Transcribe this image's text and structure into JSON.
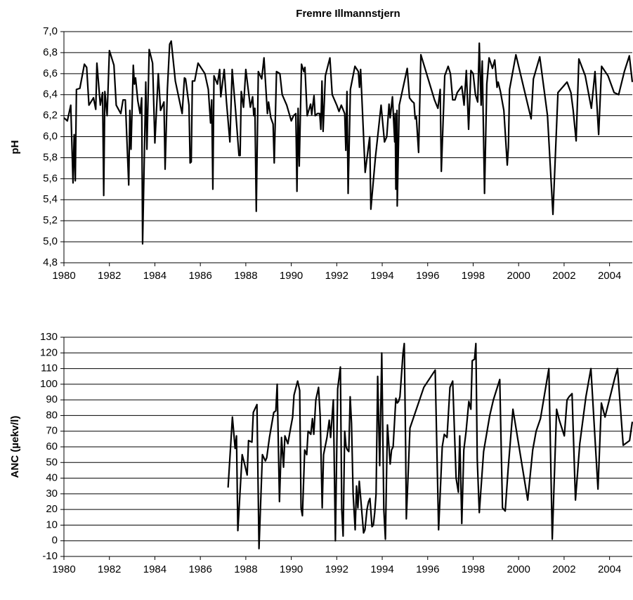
{
  "chart_data": [
    {
      "type": "line",
      "title": "Fremre Illmannstjern",
      "y_label": "pH",
      "color": "#000000",
      "grid": true,
      "xlim": [
        1980,
        2005
      ],
      "xticks": [
        1980,
        1982,
        1984,
        1986,
        1988,
        1990,
        1992,
        1994,
        1996,
        1998,
        2000,
        2002,
        2004
      ],
      "ylim": [
        4.8,
        7.0
      ],
      "yticks": [
        {
          "value": 4.8,
          "label": "4,8"
        },
        {
          "value": 5.0,
          "label": "5,0"
        },
        {
          "value": 5.2,
          "label": "5,2"
        },
        {
          "value": 5.4,
          "label": "5,4"
        },
        {
          "value": 5.6,
          "label": "5,6"
        },
        {
          "value": 5.8,
          "label": "5,8"
        },
        {
          "value": 6.0,
          "label": "6,0"
        },
        {
          "value": 6.2,
          "label": "6,2"
        },
        {
          "value": 6.4,
          "label": "6,4"
        },
        {
          "value": 6.6,
          "label": "6,6"
        },
        {
          "value": 6.8,
          "label": "6,8"
        },
        {
          "value": 7.0,
          "label": "7,0"
        }
      ],
      "x": [
        1980.0,
        1980.15,
        1980.3,
        1980.4,
        1980.45,
        1980.5,
        1980.55,
        1980.7,
        1980.9,
        1981.0,
        1981.1,
        1981.3,
        1981.4,
        1981.45,
        1981.6,
        1981.7,
        1981.75,
        1981.8,
        1981.9,
        1982.0,
        1982.2,
        1982.3,
        1982.5,
        1982.6,
        1982.7,
        1982.85,
        1982.9,
        1982.95,
        1983.05,
        1983.1,
        1983.15,
        1983.25,
        1983.35,
        1983.42,
        1983.46,
        1983.6,
        1983.65,
        1983.75,
        1983.9,
        1984.0,
        1984.15,
        1984.25,
        1984.4,
        1984.45,
        1984.55,
        1984.65,
        1984.72,
        1984.9,
        1985.2,
        1985.3,
        1985.35,
        1985.5,
        1985.55,
        1985.6,
        1985.65,
        1985.75,
        1985.9,
        1986.2,
        1986.35,
        1986.45,
        1986.5,
        1986.55,
        1986.6,
        1986.75,
        1986.85,
        1986.9,
        1987.05,
        1987.15,
        1987.3,
        1987.4,
        1987.55,
        1987.7,
        1987.75,
        1987.8,
        1987.9,
        1988.0,
        1988.2,
        1988.3,
        1988.35,
        1988.4,
        1988.46,
        1988.55,
        1988.7,
        1988.8,
        1988.95,
        1989.0,
        1989.1,
        1989.2,
        1989.25,
        1989.35,
        1989.5,
        1989.6,
        1989.8,
        1990.0,
        1990.1,
        1990.2,
        1990.25,
        1990.3,
        1990.35,
        1990.45,
        1990.55,
        1990.6,
        1990.7,
        1990.85,
        1990.9,
        1991.0,
        1991.05,
        1991.15,
        1991.25,
        1991.3,
        1991.35,
        1991.4,
        1991.5,
        1991.7,
        1991.8,
        1992.0,
        1992.1,
        1992.2,
        1992.35,
        1992.4,
        1992.45,
        1992.5,
        1992.6,
        1992.8,
        1992.95,
        1993.0,
        1993.05,
        1993.25,
        1993.45,
        1993.5,
        1993.7,
        1993.95,
        1994.1,
        1994.2,
        1994.3,
        1994.35,
        1994.45,
        1994.55,
        1994.57,
        1994.6,
        1994.65,
        1994.66,
        1994.75,
        1994.9,
        1995.1,
        1995.2,
        1995.3,
        1995.4,
        1995.45,
        1995.5,
        1995.6,
        1995.7,
        1996.3,
        1996.45,
        1996.55,
        1996.6,
        1996.75,
        1996.9,
        1997.0,
        1997.1,
        1997.2,
        1997.3,
        1997.5,
        1997.6,
        1997.7,
        1997.8,
        1997.9,
        1998.0,
        1998.1,
        1998.2,
        1998.27,
        1998.35,
        1998.4,
        1998.5,
        1998.6,
        1998.7,
        1998.85,
        1998.95,
        1999.05,
        1999.1,
        1999.2,
        1999.35,
        1999.5,
        1999.55,
        1999.6,
        1999.88,
        2000.55,
        2000.65,
        2000.93,
        2001.27,
        2001.51,
        2001.73,
        2002.13,
        2002.3,
        2002.4,
        2002.53,
        2002.65,
        2002.93,
        2003.2,
        2003.36,
        2003.52,
        2003.65,
        2003.93,
        2004.2,
        2004.4,
        2004.65,
        2004.87,
        2005.0
      ],
      "values": [
        6.18,
        6.15,
        6.3,
        5.56,
        6.02,
        5.58,
        6.45,
        6.46,
        6.69,
        6.66,
        6.3,
        6.37,
        6.26,
        6.7,
        6.3,
        6.42,
        5.44,
        6.43,
        6.2,
        6.82,
        6.68,
        6.3,
        6.22,
        6.35,
        6.35,
        5.54,
        6.25,
        5.88,
        6.68,
        6.5,
        6.56,
        6.34,
        6.22,
        6.37,
        4.98,
        6.52,
        5.88,
        6.83,
        6.7,
        5.94,
        6.6,
        6.25,
        6.33,
        5.69,
        6.45,
        6.88,
        6.91,
        6.53,
        6.22,
        6.56,
        6.55,
        6.3,
        5.75,
        5.76,
        6.53,
        6.53,
        6.7,
        6.6,
        6.45,
        6.13,
        6.35,
        5.5,
        6.58,
        6.5,
        6.64,
        6.38,
        6.64,
        6.33,
        5.95,
        6.64,
        6.25,
        5.82,
        5.82,
        6.43,
        6.28,
        6.64,
        6.28,
        6.38,
        6.2,
        6.27,
        5.29,
        6.62,
        6.55,
        6.75,
        6.22,
        6.33,
        6.18,
        6.12,
        5.75,
        6.62,
        6.6,
        6.4,
        6.3,
        6.15,
        6.2,
        6.22,
        5.48,
        6.27,
        5.72,
        6.69,
        6.62,
        6.66,
        6.2,
        6.31,
        6.21,
        6.39,
        6.2,
        6.22,
        6.22,
        6.07,
        6.53,
        6.05,
        6.58,
        6.75,
        6.4,
        6.3,
        6.24,
        6.3,
        6.22,
        5.87,
        6.43,
        5.46,
        6.45,
        6.67,
        6.62,
        6.47,
        6.64,
        5.66,
        6.0,
        5.31,
        5.8,
        6.3,
        5.95,
        6.0,
        6.31,
        6.18,
        6.38,
        5.95,
        6.22,
        5.5,
        6.25,
        5.34,
        6.3,
        6.45,
        6.65,
        6.37,
        6.34,
        6.32,
        6.17,
        6.19,
        5.85,
        6.78,
        6.35,
        6.27,
        6.45,
        5.67,
        6.58,
        6.67,
        6.6,
        6.35,
        6.35,
        6.42,
        6.48,
        6.3,
        6.63,
        6.07,
        6.63,
        6.6,
        6.4,
        6.33,
        6.89,
        6.3,
        6.72,
        5.46,
        6.5,
        6.75,
        6.65,
        6.73,
        6.47,
        6.52,
        6.43,
        6.25,
        5.73,
        5.9,
        6.45,
        6.78,
        6.17,
        6.55,
        6.76,
        6.2,
        5.26,
        6.42,
        6.52,
        6.42,
        6.25,
        5.96,
        6.74,
        6.58,
        6.27,
        6.62,
        6.02,
        6.67,
        6.58,
        6.42,
        6.4,
        6.62,
        6.77,
        6.52
      ]
    },
    {
      "type": "line",
      "y_label": "ANC (µekv/l)",
      "color": "#000000",
      "grid": true,
      "xlim": [
        1980,
        2005
      ],
      "xticks": [
        1980,
        1982,
        1984,
        1986,
        1988,
        1990,
        1992,
        1994,
        1996,
        1998,
        2000,
        2002,
        2004
      ],
      "ylim": [
        -10,
        130
      ],
      "yticks": [
        -10,
        0,
        10,
        20,
        30,
        40,
        50,
        60,
        70,
        80,
        90,
        100,
        110,
        120,
        130
      ],
      "x": [
        1987.22,
        1987.41,
        1987.53,
        1987.59,
        1987.65,
        1987.84,
        1987.93,
        1988.06,
        1988.12,
        1988.27,
        1988.33,
        1988.49,
        1988.58,
        1988.73,
        1988.86,
        1988.92,
        1989.04,
        1989.23,
        1989.32,
        1989.38,
        1989.48,
        1989.57,
        1989.66,
        1989.72,
        1989.85,
        1989.97,
        1990.06,
        1990.12,
        1990.28,
        1990.37,
        1990.43,
        1990.49,
        1990.59,
        1990.68,
        1990.74,
        1990.86,
        1990.93,
        1990.99,
        1991.08,
        1991.2,
        1991.27,
        1991.36,
        1991.42,
        1991.57,
        1991.67,
        1991.73,
        1991.85,
        1991.94,
        1992.04,
        1992.16,
        1992.22,
        1992.28,
        1992.35,
        1992.41,
        1992.47,
        1992.53,
        1992.59,
        1992.65,
        1992.72,
        1992.81,
        1992.87,
        1992.93,
        1992.99,
        1993.06,
        1993.18,
        1993.24,
        1993.33,
        1993.4,
        1993.46,
        1993.55,
        1993.61,
        1993.67,
        1993.73,
        1993.8,
        1993.89,
        1993.98,
        1994.07,
        1994.14,
        1994.23,
        1994.35,
        1994.41,
        1994.48,
        1994.6,
        1994.66,
        1994.72,
        1994.78,
        1994.91,
        1994.97,
        1995.03,
        1995.06,
        1995.15,
        1995.22,
        1995.83,
        1996.33,
        1996.48,
        1996.64,
        1996.73,
        1996.85,
        1996.98,
        1997.1,
        1997.25,
        1997.35,
        1997.41,
        1997.5,
        1997.59,
        1997.69,
        1997.81,
        1997.9,
        1997.96,
        1998.06,
        1998.12,
        1998.18,
        1998.27,
        1998.46,
        1998.73,
        1998.89,
        1999.17,
        1999.29,
        1999.41,
        1999.54,
        1999.75,
        2000.4,
        2000.62,
        2000.77,
        2000.96,
        2001.33,
        2001.48,
        2001.67,
        2001.79,
        2002.01,
        2002.13,
        2002.22,
        2002.35,
        2002.5,
        2002.69,
        2002.96,
        2003.18,
        2003.49,
        2003.64,
        2003.8,
        2004.23,
        2004.35,
        2004.6,
        2004.88,
        2005.0
      ],
      "values": [
        34,
        79,
        59,
        67,
        6.5,
        55,
        50,
        42,
        64,
        63,
        82,
        87,
        -5,
        55,
        51,
        53,
        66,
        82,
        83,
        100,
        25,
        66,
        47,
        67,
        62,
        72,
        79,
        93,
        102,
        96,
        21,
        16,
        58,
        55,
        70,
        68,
        78,
        68,
        90,
        98,
        80,
        21,
        55,
        66,
        77,
        66,
        90,
        0,
        97,
        111,
        20,
        3,
        70,
        60,
        58,
        57,
        92,
        75,
        30,
        7,
        35,
        21,
        38,
        26,
        5,
        7,
        20,
        25,
        27,
        9,
        10,
        18,
        30,
        105,
        48,
        120,
        20,
        1,
        74,
        49,
        58,
        60,
        91,
        88,
        89,
        92,
        119,
        126,
        60,
        14,
        46,
        72,
        98,
        109,
        7,
        60,
        68,
        66,
        98,
        102,
        40,
        31,
        67,
        11,
        58,
        70,
        89,
        84,
        115,
        116,
        126,
        52,
        18,
        57,
        80,
        90,
        103,
        21,
        19,
        46,
        84,
        26,
        58,
        70,
        78,
        110,
        1,
        84,
        77,
        67,
        90,
        92,
        94,
        26,
        62,
        92,
        110,
        33,
        88,
        79,
        104,
        110,
        61,
        64,
        76
      ]
    }
  ]
}
